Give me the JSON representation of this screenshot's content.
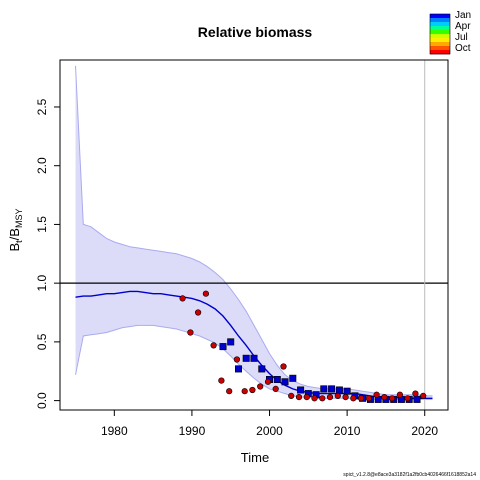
{
  "chart_data": {
    "type": "line",
    "title": "Relative biomass",
    "xlabel": "Time",
    "ylabel": {
      "base": "B",
      "sub1": "t",
      "sep": "/B",
      "sub2": "MSY"
    },
    "xlim": [
      1973.0,
      2023.0
    ],
    "ylim": [
      -0.08,
      2.9
    ],
    "xticks": [
      "1980",
      "1990",
      "2000",
      "2010",
      "2020"
    ],
    "yticks": [
      "0.0",
      "0.5",
      "1.0",
      "1.5",
      "2.0",
      "2.5"
    ],
    "reference_line_y": 1.0,
    "vertical_line_x": 2020,
    "ci_fill_color": "#dcdcf8",
    "ci_line_color": "#aaaaf0",
    "median_color": "#0000cd",
    "year_span": [
      1975,
      2021
    ],
    "median": [
      0.88,
      0.89,
      0.89,
      0.9,
      0.91,
      0.91,
      0.92,
      0.93,
      0.93,
      0.92,
      0.91,
      0.91,
      0.9,
      0.89,
      0.88,
      0.87,
      0.85,
      0.82,
      0.78,
      0.72,
      0.64,
      0.55,
      0.47,
      0.38,
      0.3,
      0.23,
      0.17,
      0.13,
      0.1,
      0.08,
      0.07,
      0.06,
      0.06,
      0.06,
      0.06,
      0.06,
      0.06,
      0.05,
      0.04,
      0.03,
      0.03,
      0.03,
      0.02,
      0.02,
      0.02,
      0.02,
      0.02
    ],
    "ci_upper": [
      2.85,
      1.5,
      1.48,
      1.43,
      1.38,
      1.35,
      1.33,
      1.31,
      1.3,
      1.29,
      1.28,
      1.27,
      1.26,
      1.25,
      1.23,
      1.21,
      1.18,
      1.14,
      1.09,
      1.03,
      0.95,
      0.86,
      0.76,
      0.64,
      0.52,
      0.4,
      0.3,
      0.22,
      0.17,
      0.14,
      0.12,
      0.11,
      0.1,
      0.1,
      0.1,
      0.1,
      0.09,
      0.08,
      0.07,
      0.06,
      0.05,
      0.05,
      0.05,
      0.05,
      0.05,
      0.04,
      0.04
    ],
    "ci_lower": [
      0.22,
      0.55,
      0.56,
      0.57,
      0.58,
      0.6,
      0.62,
      0.63,
      0.64,
      0.64,
      0.64,
      0.63,
      0.62,
      0.61,
      0.59,
      0.57,
      0.55,
      0.52,
      0.49,
      0.44,
      0.38,
      0.31,
      0.25,
      0.19,
      0.14,
      0.1,
      0.08,
      0.06,
      0.04,
      0.03,
      0.03,
      0.02,
      0.02,
      0.02,
      0.02,
      0.02,
      0.02,
      0.01,
      0.01,
      0.01,
      0.01,
      0.01,
      0.01,
      0.01,
      0.01,
      0.01,
      0.01
    ],
    "obs_series": [
      {
        "season": "Jan",
        "marker": "square",
        "color": "#0000cd",
        "points": [
          {
            "x": 1994.0,
            "y": 0.46
          },
          {
            "x": 1995.0,
            "y": 0.5
          },
          {
            "x": 1996.0,
            "y": 0.27
          },
          {
            "x": 1997.0,
            "y": 0.36
          },
          {
            "x": 1998.0,
            "y": 0.36
          },
          {
            "x": 1999.0,
            "y": 0.27
          },
          {
            "x": 2000.0,
            "y": 0.18
          },
          {
            "x": 2001.0,
            "y": 0.18
          },
          {
            "x": 2002.0,
            "y": 0.16
          },
          {
            "x": 2003.0,
            "y": 0.19
          },
          {
            "x": 2004.0,
            "y": 0.09
          },
          {
            "x": 2005.0,
            "y": 0.06
          },
          {
            "x": 2006.0,
            "y": 0.05
          },
          {
            "x": 2007.0,
            "y": 0.1
          },
          {
            "x": 2008.0,
            "y": 0.1
          },
          {
            "x": 2009.0,
            "y": 0.09
          },
          {
            "x": 2010.0,
            "y": 0.08
          },
          {
            "x": 2011.0,
            "y": 0.04
          },
          {
            "x": 2012.0,
            "y": 0.02
          },
          {
            "x": 2013.0,
            "y": 0.01
          },
          {
            "x": 2014.0,
            "y": 0.01
          },
          {
            "x": 2015.0,
            "y": 0.01
          },
          {
            "x": 2016.0,
            "y": 0.01
          },
          {
            "x": 2017.0,
            "y": 0.01
          },
          {
            "x": 2018.0,
            "y": 0.01
          },
          {
            "x": 2019.0,
            "y": 0.01
          }
        ]
      },
      {
        "season": "Oct",
        "marker": "circle",
        "color": "#cc0000",
        "points": [
          {
            "x": 1988.8,
            "y": 0.87
          },
          {
            "x": 1989.8,
            "y": 0.58
          },
          {
            "x": 1990.8,
            "y": 0.75
          },
          {
            "x": 1991.8,
            "y": 0.91
          },
          {
            "x": 1992.8,
            "y": 0.47
          },
          {
            "x": 1993.8,
            "y": 0.17
          },
          {
            "x": 1994.8,
            "y": 0.08
          },
          {
            "x": 1995.8,
            "y": 0.35
          },
          {
            "x": 1996.8,
            "y": 0.08
          },
          {
            "x": 1997.8,
            "y": 0.09
          },
          {
            "x": 1998.8,
            "y": 0.12
          },
          {
            "x": 1999.8,
            "y": 0.16
          },
          {
            "x": 2000.8,
            "y": 0.1
          },
          {
            "x": 2001.8,
            "y": 0.29
          },
          {
            "x": 2002.8,
            "y": 0.04
          },
          {
            "x": 2003.8,
            "y": 0.03
          },
          {
            "x": 2004.8,
            "y": 0.03
          },
          {
            "x": 2005.8,
            "y": 0.02
          },
          {
            "x": 2006.8,
            "y": 0.02
          },
          {
            "x": 2007.8,
            "y": 0.03
          },
          {
            "x": 2008.8,
            "y": 0.04
          },
          {
            "x": 2009.8,
            "y": 0.03
          },
          {
            "x": 2010.8,
            "y": 0.02
          },
          {
            "x": 2011.8,
            "y": 0.02
          },
          {
            "x": 2012.8,
            "y": 0.02
          },
          {
            "x": 2013.8,
            "y": 0.05
          },
          {
            "x": 2014.8,
            "y": 0.03
          },
          {
            "x": 2015.8,
            "y": 0.02
          },
          {
            "x": 2016.8,
            "y": 0.05
          },
          {
            "x": 2017.8,
            "y": 0.02
          },
          {
            "x": 2018.8,
            "y": 0.06
          },
          {
            "x": 2019.8,
            "y": 0.04
          }
        ]
      }
    ],
    "legend": {
      "placement": "top-right",
      "labels": [
        "Jan",
        "Apr",
        "Jul",
        "Oct"
      ],
      "colors": [
        "#0000ff",
        "#0080ff",
        "#00ccff",
        "#00ff99",
        "#33ff00",
        "#ccff00",
        "#ffee00",
        "#ffaa00",
        "#ff5500",
        "#ff0000"
      ]
    }
  },
  "footer": "spict_v1.2.8@e8ace3a3182f1a2fb0cb4026466f1618852a14"
}
